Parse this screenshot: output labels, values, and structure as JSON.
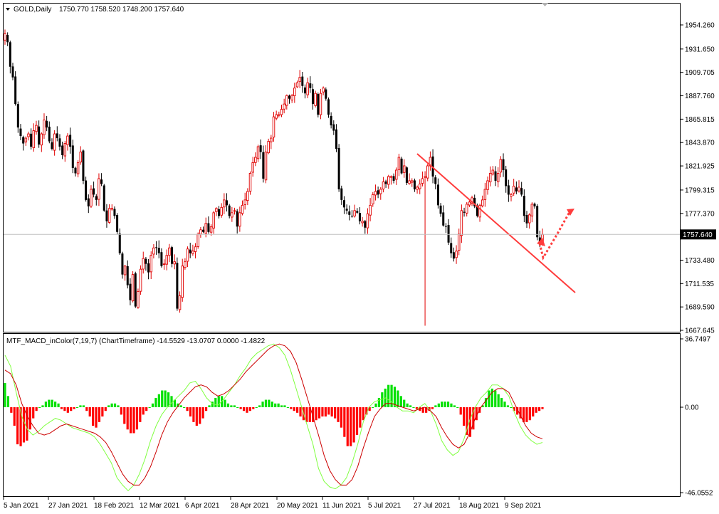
{
  "header": {
    "symbol": "GOLD,Daily",
    "ohlc": "1750.770 1758.520 1748.200 1757.640"
  },
  "indicator_header": "MTF_MACD_inColor(7,19,7) (ChartTimeframe) -14.5529 -13.0707 0.0000 -1.4822",
  "colors": {
    "bull_candle": "#e00000",
    "bear_candle": "#000000",
    "hist_positive": "#00e000",
    "hist_negative": "#ff0000",
    "macd_line": "#80ff40",
    "signal_line": "#cc0000",
    "trendline": "#ff3c3c",
    "arrow": "#ff3c3c",
    "price_marker_bg": "#000000",
    "grid_line": "#c0c0c0"
  },
  "chart_data": [
    {
      "type": "candlestick",
      "title": "GOLD,Daily",
      "yticks": [
        "1954.260",
        "1931.650",
        "1909.705",
        "1887.760",
        "1865.815",
        "1843.870",
        "1821.925",
        "1799.315",
        "1777.370",
        "1757.640",
        "1733.480",
        "1711.535",
        "1689.590",
        "1667.645"
      ],
      "yvalues": [
        1954.26,
        1931.65,
        1909.705,
        1887.76,
        1865.815,
        1843.87,
        1821.925,
        1799.315,
        1777.37,
        1757.64,
        1733.48,
        1711.535,
        1689.59,
        1667.645
      ],
      "current_price": "1757.640",
      "ylim": [
        1662.0,
        1975.0
      ],
      "xticks": [
        "5 Jan 2021",
        "27 Jan 2021",
        "18 Feb 2021",
        "12 Mar 2021",
        "6 Apr 2021",
        "28 Apr 2021",
        "20 May 2021",
        "11 Jun 2021",
        "5 Jul 2021",
        "27 Jul 2021",
        "18 Aug 2021",
        "9 Sep 2021"
      ],
      "close_path": [
        1946,
        1938,
        1915,
        1905,
        1880,
        1858,
        1850,
        1843,
        1848,
        1852,
        1840,
        1855,
        1860,
        1842,
        1852,
        1865,
        1858,
        1845,
        1838,
        1852,
        1848,
        1840,
        1832,
        1843,
        1850,
        1840,
        1820,
        1815,
        1825,
        1835,
        1808,
        1790,
        1784,
        1800,
        1795,
        1790,
        1810,
        1805,
        1780,
        1770,
        1782,
        1782,
        1775,
        1760,
        1740,
        1720,
        1728,
        1710,
        1696,
        1720,
        1690,
        1704,
        1725,
        1735,
        1730,
        1722,
        1738,
        1745,
        1745,
        1740,
        1728,
        1730,
        1738,
        1745,
        1730,
        1732,
        1688,
        1700,
        1728,
        1732,
        1744,
        1740,
        1742,
        1746,
        1758,
        1762,
        1760,
        1768,
        1760,
        1765,
        1778,
        1782,
        1775,
        1783,
        1790,
        1785,
        1775,
        1778,
        1780,
        1765,
        1778,
        1785,
        1790,
        1798,
        1815,
        1825,
        1830,
        1840,
        1835,
        1810,
        1835,
        1845,
        1848,
        1868,
        1870,
        1870,
        1875,
        1880,
        1888,
        1885,
        1888,
        1895,
        1900,
        1905,
        1897,
        1890,
        1900,
        1895,
        1880,
        1890,
        1870,
        1890,
        1895,
        1885,
        1870,
        1860,
        1855,
        1838,
        1800,
        1790,
        1783,
        1780,
        1776,
        1775,
        1780,
        1778,
        1770,
        1770,
        1764,
        1777,
        1785,
        1795,
        1798,
        1795,
        1800,
        1807,
        1805,
        1812,
        1812,
        1808,
        1818,
        1830,
        1815,
        1822,
        1806,
        1808,
        1808,
        1800,
        1802,
        1805,
        1810,
        1812,
        1822,
        1830,
        1812,
        1805,
        1785,
        1777,
        1766,
        1765,
        1750,
        1740,
        1735,
        1742,
        1758,
        1780,
        1778,
        1786,
        1788,
        1792,
        1784,
        1775,
        1785,
        1790,
        1800,
        1808,
        1815,
        1818,
        1808,
        1815,
        1828,
        1818,
        1803,
        1795,
        1795,
        1803,
        1798,
        1802,
        1795,
        1775,
        1768,
        1776,
        1786,
        1784,
        1755,
        1750,
        1757.64
      ],
      "trendline": {
        "from": {
          "x": "27 Jul 2021",
          "y": 1835
        },
        "to": {
          "x": "after 9 Sep 2021",
          "y": 1700
        }
      },
      "forecast_arrow": "down-then-up"
    },
    {
      "type": "bar",
      "title": "MTF_MACD_inColor(7,19,7)",
      "yticks": [
        "36.7497",
        "0.00",
        "-46.0552"
      ],
      "yvalues": [
        36.7497,
        0.0,
        -46.0552
      ],
      "ylim": [
        -46.0552,
        36.7497
      ],
      "histogram": [
        13,
        6,
        -3,
        -10,
        -20,
        -21,
        -19,
        -18,
        -12,
        -6,
        -2,
        0,
        1,
        3,
        4,
        4,
        3,
        2,
        -1,
        -2,
        -3,
        -2,
        -1,
        0,
        1,
        1,
        -2,
        -5,
        -10,
        -11,
        -8,
        -5,
        -2,
        1,
        2,
        2,
        1,
        -4,
        -9,
        -12,
        -14,
        -14,
        -12,
        -8,
        -4,
        -2,
        0,
        2,
        5,
        7,
        9,
        9,
        8,
        6,
        4,
        2,
        1,
        0,
        -2,
        -5,
        -8,
        -10,
        -9,
        -6,
        -2,
        1,
        3,
        5,
        6,
        6,
        4,
        2,
        1,
        1,
        0,
        -1,
        -2,
        -3,
        -2,
        -1,
        0,
        1,
        3,
        4,
        4,
        3,
        2,
        2,
        1,
        1,
        0,
        -1,
        -2,
        -3,
        -5,
        -7,
        -8,
        -8,
        -8,
        -7,
        -6,
        -5,
        -5,
        -4,
        -5,
        -6,
        -8,
        -11,
        -16,
        -21,
        -21,
        -19,
        -15,
        -11,
        -7,
        -4,
        -2,
        0,
        2,
        5,
        8,
        10,
        12,
        12,
        11,
        9,
        6,
        4,
        2,
        1,
        0,
        -1,
        -2,
        -3,
        -3,
        -2,
        -1,
        1,
        2,
        3,
        3,
        3,
        2,
        1,
        0,
        -4,
        -10,
        -15,
        -16,
        -12,
        -7,
        -3,
        1,
        5,
        9,
        10,
        9,
        7,
        5,
        3,
        1,
        0,
        -2,
        -4,
        -6,
        -8,
        -8,
        -7,
        -5,
        -3,
        -2,
        -1
      ],
      "macd_line": [
        28,
        22,
        8,
        -5,
        -12,
        -15,
        -13,
        -10,
        -8,
        -6,
        -7,
        -9,
        -11,
        -12,
        -13,
        -14,
        -16,
        -20,
        -25,
        -30,
        -38,
        -42,
        -45,
        -42,
        -36,
        -28,
        -18,
        -10,
        -4,
        0,
        3,
        6,
        9,
        13,
        14,
        10,
        5,
        2,
        1,
        4,
        8,
        12,
        17,
        21,
        26,
        29,
        31,
        33,
        34,
        32,
        28,
        20,
        10,
        0,
        -10,
        -20,
        -33,
        -40,
        -43,
        -44,
        -42,
        -38,
        -30,
        -20,
        -8,
        0,
        3,
        4,
        5,
        3,
        0,
        -2,
        -2,
        -3,
        0,
        2,
        -2,
        -9,
        -18,
        -23,
        -26,
        -24,
        -17,
        -7,
        0,
        5,
        8,
        12,
        12,
        10,
        6,
        -3,
        -10,
        -15,
        -18,
        -20,
        -19
      ],
      "signal_line": [
        20,
        18,
        12,
        2,
        -5,
        -10,
        -14,
        -15,
        -14,
        -12,
        -10,
        -9,
        -10,
        -11,
        -12,
        -13,
        -14,
        -16,
        -19,
        -24,
        -30,
        -36,
        -40,
        -42,
        -42,
        -38,
        -32,
        -24,
        -15,
        -8,
        -3,
        1,
        5,
        8,
        11,
        12,
        11,
        8,
        6,
        7,
        9,
        12,
        15,
        19,
        22,
        25,
        28,
        31,
        33,
        34,
        33,
        30,
        24,
        15,
        5,
        -5,
        -15,
        -26,
        -34,
        -39,
        -42,
        -42,
        -39,
        -32,
        -22,
        -13,
        -5,
        -1,
        2,
        2,
        1,
        0,
        -1,
        -2,
        -1,
        0,
        -2,
        -5,
        -11,
        -16,
        -20,
        -22,
        -20,
        -14,
        -6,
        0,
        4,
        8,
        10,
        10,
        8,
        2,
        -4,
        -10,
        -14,
        -16,
        -17
      ]
    }
  ]
}
